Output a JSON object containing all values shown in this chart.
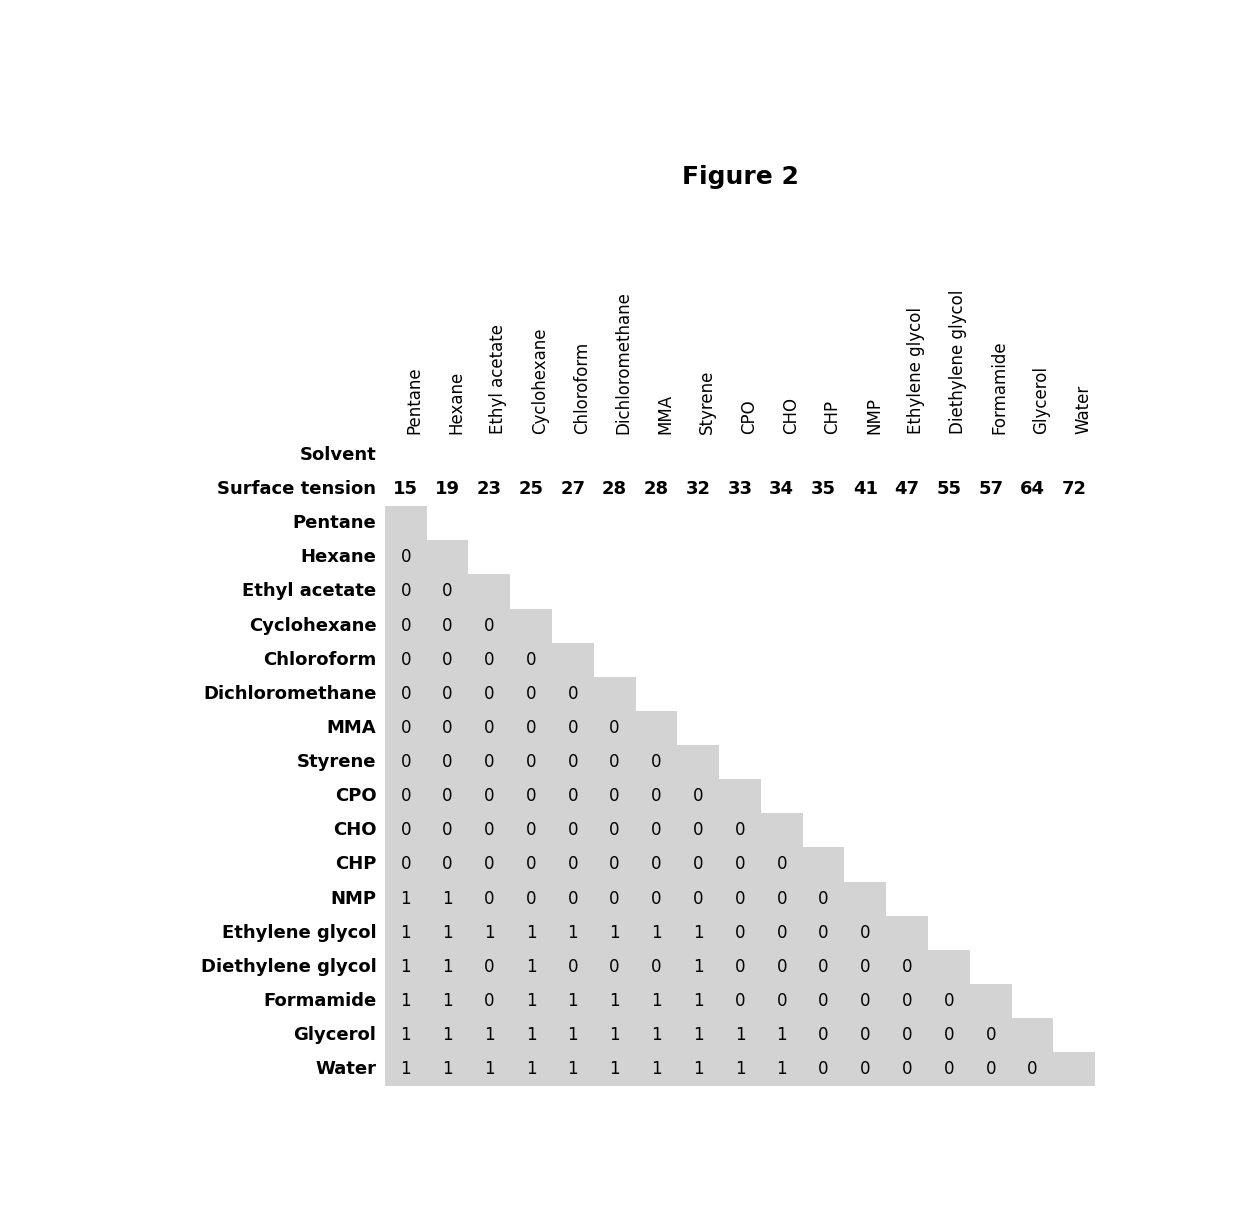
{
  "title": "Figure 2",
  "solvents": [
    "Pentane",
    "Hexane",
    "Ethyl acetate",
    "Cyclohexane",
    "Chloroform",
    "Dichloromethane",
    "MMA",
    "Styrene",
    "CPO",
    "CHO",
    "CHP",
    "NMP",
    "Ethylene glycol",
    "Diethylene glycol",
    "Formamide",
    "Glycerol",
    "Water"
  ],
  "surface_tensions": [
    15,
    19,
    23,
    25,
    27,
    28,
    28,
    32,
    33,
    34,
    35,
    41,
    47,
    55,
    57,
    64,
    72
  ],
  "matrix": [
    [
      null,
      null,
      null,
      null,
      null,
      null,
      null,
      null,
      null,
      null,
      null,
      null,
      null,
      null,
      null,
      null,
      null
    ],
    [
      0,
      null,
      null,
      null,
      null,
      null,
      null,
      null,
      null,
      null,
      null,
      null,
      null,
      null,
      null,
      null,
      null
    ],
    [
      0,
      0,
      null,
      null,
      null,
      null,
      null,
      null,
      null,
      null,
      null,
      null,
      null,
      null,
      null,
      null,
      null
    ],
    [
      0,
      0,
      0,
      null,
      null,
      null,
      null,
      null,
      null,
      null,
      null,
      null,
      null,
      null,
      null,
      null,
      null
    ],
    [
      0,
      0,
      0,
      0,
      null,
      null,
      null,
      null,
      null,
      null,
      null,
      null,
      null,
      null,
      null,
      null,
      null
    ],
    [
      0,
      0,
      0,
      0,
      0,
      null,
      null,
      null,
      null,
      null,
      null,
      null,
      null,
      null,
      null,
      null,
      null
    ],
    [
      0,
      0,
      0,
      0,
      0,
      0,
      null,
      null,
      null,
      null,
      null,
      null,
      null,
      null,
      null,
      null,
      null
    ],
    [
      0,
      0,
      0,
      0,
      0,
      0,
      0,
      null,
      null,
      null,
      null,
      null,
      null,
      null,
      null,
      null,
      null
    ],
    [
      0,
      0,
      0,
      0,
      0,
      0,
      0,
      0,
      null,
      null,
      null,
      null,
      null,
      null,
      null,
      null,
      null
    ],
    [
      0,
      0,
      0,
      0,
      0,
      0,
      0,
      0,
      0,
      null,
      null,
      null,
      null,
      null,
      null,
      null,
      null
    ],
    [
      0,
      0,
      0,
      0,
      0,
      0,
      0,
      0,
      0,
      0,
      null,
      null,
      null,
      null,
      null,
      null,
      null
    ],
    [
      1,
      1,
      0,
      0,
      0,
      0,
      0,
      0,
      0,
      0,
      0,
      null,
      null,
      null,
      null,
      null,
      null
    ],
    [
      1,
      1,
      1,
      1,
      1,
      1,
      1,
      1,
      0,
      0,
      0,
      0,
      null,
      null,
      null,
      null,
      null
    ],
    [
      1,
      1,
      0,
      1,
      0,
      0,
      0,
      1,
      0,
      0,
      0,
      0,
      0,
      null,
      null,
      null,
      null
    ],
    [
      1,
      1,
      0,
      1,
      1,
      1,
      1,
      1,
      0,
      0,
      0,
      0,
      0,
      0,
      null,
      null,
      null
    ],
    [
      1,
      1,
      1,
      1,
      1,
      1,
      1,
      1,
      1,
      1,
      0,
      0,
      0,
      0,
      0,
      null,
      null
    ],
    [
      1,
      1,
      1,
      1,
      1,
      1,
      1,
      1,
      1,
      1,
      0,
      0,
      0,
      0,
      0,
      0,
      null
    ]
  ],
  "cell_color": "#d3d3d3",
  "bg_color": "#ffffff",
  "title_fontsize": 18,
  "row_label_fontsize": 13,
  "value_fontsize": 12,
  "col_header_fontsize": 12,
  "surface_tension_fontsize": 13
}
